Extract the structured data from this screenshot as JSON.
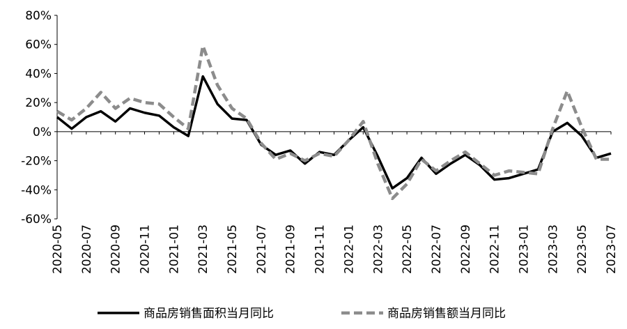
{
  "chart_data": {
    "type": "line",
    "categories": [
      "2020-05",
      null,
      "2020-07",
      null,
      "2020-09",
      null,
      "2020-11",
      null,
      "2021-01",
      null,
      "2021-03",
      null,
      "2021-05",
      null,
      "2021-07",
      null,
      "2021-09",
      null,
      "2021-11",
      null,
      "2022-01",
      null,
      "2022-03",
      null,
      "2022-05",
      null,
      "2022-07",
      null,
      "2022-09",
      null,
      "2022-11",
      null,
      "2023-01",
      null,
      "2023-03",
      null,
      "2023-05",
      null,
      "2023-07"
    ],
    "series": [
      {
        "name": "商品房销售面积当月同比",
        "color": "#000000",
        "dash": false,
        "values": [
          10,
          2,
          10,
          14,
          7,
          16,
          13,
          11,
          3,
          -3,
          38,
          19,
          9,
          8,
          -9,
          -16,
          -13,
          -22,
          -14,
          -16,
          -6,
          3,
          -17,
          -39,
          -32,
          -18,
          -29,
          -22,
          -16,
          -23,
          -33,
          -32,
          -29,
          -26,
          0,
          6,
          -3,
          -18,
          -15
        ]
      },
      {
        "name": "商品房销售额当月同比",
        "color": "#8c8c8c",
        "dash": true,
        "values": [
          14,
          8,
          16,
          27,
          16,
          23,
          20,
          19,
          10,
          2,
          59,
          32,
          16,
          9,
          -8,
          -19,
          -15,
          -20,
          -15,
          -17,
          -6,
          7,
          -22,
          -46,
          -36,
          -19,
          -27,
          -20,
          -14,
          -22,
          -30,
          -27,
          -28,
          -29,
          2,
          28,
          3,
          -19,
          -19
        ]
      }
    ],
    "ylim": [
      -60,
      80
    ],
    "yticks": [
      {
        "value": -60,
        "label": "-60%"
      },
      {
        "value": -40,
        "label": "-40%"
      },
      {
        "value": -20,
        "label": "-20%"
      },
      {
        "value": 0,
        "label": "0%"
      },
      {
        "value": 20,
        "label": "20%"
      },
      {
        "value": 40,
        "label": "40%"
      },
      {
        "value": 60,
        "label": "60%"
      },
      {
        "value": 80,
        "label": "80%"
      }
    ],
    "legend": "bottom"
  }
}
